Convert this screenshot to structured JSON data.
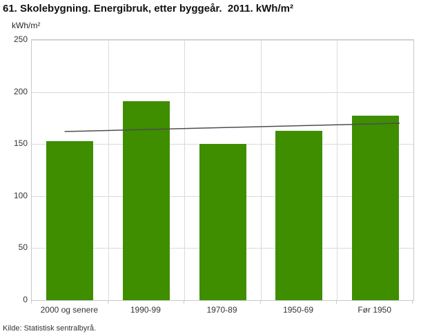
{
  "title": "61. Skolebygning. Energibruk, etter byggeår.  2011. kWh/m²",
  "source": "Kilde: Statistisk sentralbyrå.",
  "chart_data": {
    "type": "bar",
    "title": "61. Skolebygning. Energibruk, etter byggeår. 2011. kWh/m²",
    "unit_label": "kWh/m²",
    "categories": [
      "2000 og senere",
      "1990-99",
      "1970-89",
      "1950-69",
      "Før 1950"
    ],
    "values": [
      153,
      191,
      150,
      163,
      177
    ],
    "trend_line": {
      "start_value": 162,
      "end_value": 170
    },
    "ylim": [
      0,
      250
    ],
    "yticks": [
      0,
      50,
      100,
      150,
      200,
      250
    ],
    "grid": true,
    "legend": "none",
    "bar_color": "#3e8e00",
    "trend_color": "#4d4d4d",
    "gridline_color": "#dadada"
  }
}
